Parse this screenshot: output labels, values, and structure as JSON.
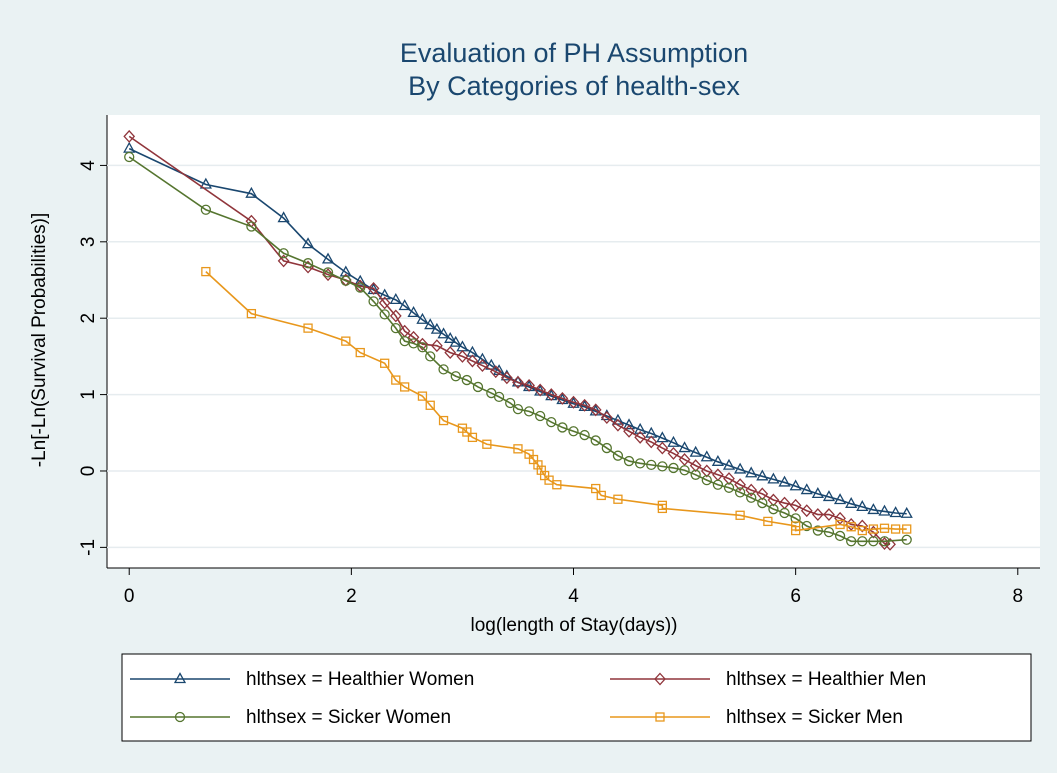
{
  "chart_data": {
    "type": "line",
    "title": [
      "Evaluation of PH Assumption",
      "By Categories of health-sex"
    ],
    "x_label": "log(length of Stay(days))",
    "y_label": "-Ln[-Ln(Survival Probabilities)]",
    "xlim": [
      -0.2,
      8.2
    ],
    "ylim": [
      -1.27,
      4.66
    ],
    "xticks": [
      0,
      2,
      4,
      6,
      8
    ],
    "yticks": [
      -1,
      0,
      1,
      2,
      3,
      4
    ],
    "grid": true,
    "legend": "bottom",
    "series": [
      {
        "name": "hlthsex = Healthier Women",
        "color": "#1a476f",
        "marker": "triangle",
        "x": [
          0,
          0.69,
          1.1,
          1.39,
          1.61,
          1.79,
          1.95,
          2.08,
          2.2,
          2.3,
          2.4,
          2.48,
          2.56,
          2.64,
          2.71,
          2.77,
          2.83,
          2.89,
          2.94,
          3.0,
          3.09,
          3.18,
          3.26,
          3.33,
          3.4,
          3.5,
          3.6,
          3.7,
          3.8,
          3.9,
          4.0,
          4.1,
          4.2,
          4.3,
          4.4,
          4.5,
          4.6,
          4.7,
          4.8,
          4.9,
          5.0,
          5.1,
          5.2,
          5.3,
          5.4,
          5.5,
          5.6,
          5.7,
          5.8,
          5.9,
          6.0,
          6.1,
          6.2,
          6.3,
          6.4,
          6.5,
          6.6,
          6.7,
          6.8,
          6.9,
          7.0
        ],
        "values": [
          4.22,
          3.75,
          3.63,
          3.31,
          2.97,
          2.77,
          2.6,
          2.48,
          2.37,
          2.3,
          2.24,
          2.16,
          2.07,
          1.98,
          1.91,
          1.85,
          1.79,
          1.73,
          1.68,
          1.62,
          1.55,
          1.46,
          1.38,
          1.31,
          1.24,
          1.16,
          1.1,
          1.04,
          0.98,
          0.93,
          0.88,
          0.84,
          0.78,
          0.72,
          0.66,
          0.6,
          0.54,
          0.49,
          0.43,
          0.37,
          0.3,
          0.24,
          0.18,
          0.12,
          0.07,
          0.02,
          -0.03,
          -0.07,
          -0.11,
          -0.15,
          -0.2,
          -0.25,
          -0.3,
          -0.34,
          -0.38,
          -0.43,
          -0.47,
          -0.51,
          -0.53,
          -0.55,
          -0.56
        ]
      },
      {
        "name": "hlthsex = Healthier Men",
        "color": "#90353b",
        "marker": "diamond",
        "x": [
          0,
          1.1,
          1.39,
          1.61,
          1.79,
          1.95,
          2.08,
          2.2,
          2.3,
          2.4,
          2.48,
          2.56,
          2.64,
          2.77,
          2.89,
          3.0,
          3.09,
          3.18,
          3.3,
          3.4,
          3.5,
          3.6,
          3.7,
          3.8,
          3.9,
          4.0,
          4.1,
          4.2,
          4.3,
          4.4,
          4.5,
          4.6,
          4.7,
          4.8,
          4.9,
          5.0,
          5.1,
          5.2,
          5.3,
          5.4,
          5.5,
          5.6,
          5.7,
          5.8,
          5.9,
          6.0,
          6.1,
          6.2,
          6.3,
          6.4,
          6.5,
          6.6,
          6.7,
          6.8,
          6.85
        ],
        "values": [
          4.38,
          3.27,
          2.75,
          2.67,
          2.57,
          2.5,
          2.42,
          2.39,
          2.2,
          2.03,
          1.83,
          1.75,
          1.66,
          1.64,
          1.55,
          1.5,
          1.44,
          1.38,
          1.3,
          1.22,
          1.16,
          1.12,
          1.06,
          1.0,
          0.95,
          0.9,
          0.86,
          0.8,
          0.7,
          0.6,
          0.52,
          0.44,
          0.38,
          0.3,
          0.23,
          0.15,
          0.07,
          0.0,
          -0.05,
          -0.1,
          -0.18,
          -0.25,
          -0.3,
          -0.38,
          -0.42,
          -0.45,
          -0.52,
          -0.57,
          -0.57,
          -0.62,
          -0.7,
          -0.72,
          -0.8,
          -0.95,
          -0.96
        ]
      },
      {
        "name": "hlthsex = Sicker Women",
        "color": "#55752f",
        "marker": "circle",
        "x": [
          0,
          0.69,
          1.1,
          1.39,
          1.61,
          1.79,
          1.95,
          2.08,
          2.2,
          2.3,
          2.4,
          2.48,
          2.56,
          2.64,
          2.71,
          2.83,
          2.94,
          3.04,
          3.14,
          3.26,
          3.33,
          3.43,
          3.5,
          3.6,
          3.7,
          3.8,
          3.9,
          4.0,
          4.1,
          4.2,
          4.3,
          4.4,
          4.5,
          4.6,
          4.7,
          4.8,
          4.9,
          5.0,
          5.1,
          5.2,
          5.3,
          5.4,
          5.5,
          5.6,
          5.7,
          5.8,
          5.9,
          6.0,
          6.1,
          6.2,
          6.3,
          6.4,
          6.5,
          6.6,
          6.7,
          6.8,
          7.0
        ],
        "values": [
          4.11,
          3.42,
          3.2,
          2.85,
          2.72,
          2.6,
          2.49,
          2.4,
          2.22,
          2.05,
          1.87,
          1.7,
          1.67,
          1.62,
          1.5,
          1.33,
          1.24,
          1.19,
          1.1,
          1.02,
          0.97,
          0.89,
          0.81,
          0.78,
          0.72,
          0.64,
          0.57,
          0.52,
          0.47,
          0.4,
          0.3,
          0.2,
          0.13,
          0.1,
          0.08,
          0.06,
          0.04,
          0.01,
          -0.05,
          -0.12,
          -0.18,
          -0.22,
          -0.28,
          -0.35,
          -0.42,
          -0.5,
          -0.55,
          -0.62,
          -0.72,
          -0.78,
          -0.8,
          -0.85,
          -0.92,
          -0.92,
          -0.92,
          -0.92,
          -0.9
        ]
      },
      {
        "name": "hlthsex = Sicker Men",
        "color": "#e8971c",
        "marker": "square",
        "x": [
          0.69,
          1.1,
          1.61,
          1.95,
          2.08,
          2.3,
          2.4,
          2.48,
          2.64,
          2.71,
          2.83,
          3.0,
          3.04,
          3.09,
          3.22,
          3.5,
          3.6,
          3.64,
          3.68,
          3.71,
          3.74,
          3.78,
          3.85,
          4.2,
          4.25,
          4.4,
          4.8,
          4.8,
          5.5,
          5.75,
          6.0,
          6.0,
          6.4,
          6.5,
          6.6,
          6.7,
          6.8,
          6.9,
          7.0
        ],
        "values": [
          2.61,
          2.06,
          1.87,
          1.7,
          1.55,
          1.41,
          1.19,
          1.1,
          0.98,
          0.86,
          0.66,
          0.56,
          0.51,
          0.44,
          0.35,
          0.29,
          0.22,
          0.15,
          0.08,
          0.01,
          -0.06,
          -0.12,
          -0.18,
          -0.23,
          -0.32,
          -0.37,
          -0.45,
          -0.49,
          -0.58,
          -0.66,
          -0.72,
          -0.78,
          -0.7,
          -0.73,
          -0.78,
          -0.76,
          -0.75,
          -0.76,
          -0.76
        ]
      }
    ]
  }
}
